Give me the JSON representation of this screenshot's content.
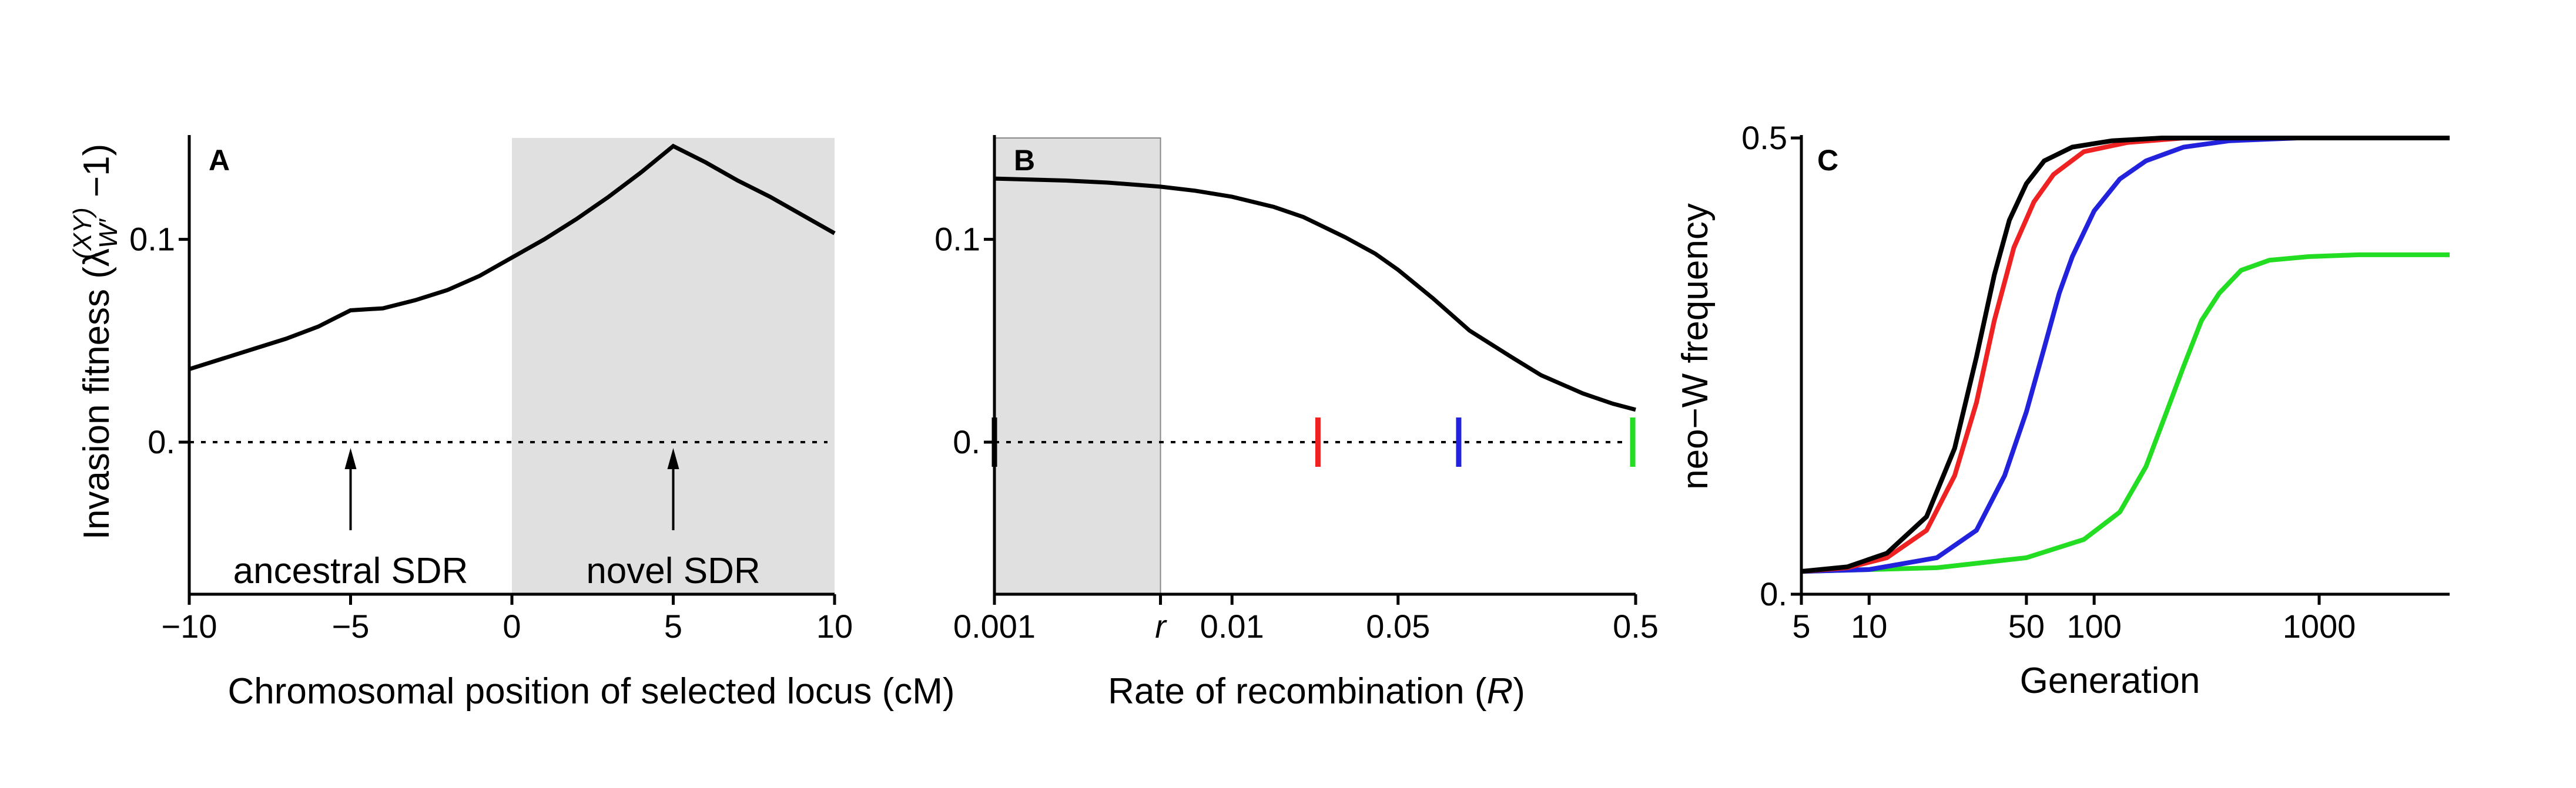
{
  "chart_data": [
    {
      "panel": "A",
      "type": "line",
      "title": "",
      "xlabel": "Chromosomal position of selected locus (cM)",
      "ylabel": "Invasion fitness (λW′(XY) − 1)",
      "ylabel_parts": {
        "pre": "Invasion fitness (λ",
        "sub": "W′",
        "sup": "(XY)",
        "post": " −1)"
      },
      "xlim": [
        -10,
        10
      ],
      "ylim": [
        -0.075,
        0.15
      ],
      "xticks": [
        -10,
        -5,
        0,
        5,
        10
      ],
      "xtick_labels": [
        "−10",
        "−5",
        "0",
        "5",
        "10"
      ],
      "yticks": [
        0,
        0.1
      ],
      "ytick_labels": [
        "0.",
        "0.1"
      ],
      "shaded_region": [
        0,
        10
      ],
      "reference_line": 0,
      "series": [
        {
          "color": "#000000",
          "x": [
            -10,
            -9,
            -8,
            -7,
            -6,
            -5.5,
            -5,
            -4.5,
            -4,
            -3,
            -2,
            -1,
            0,
            1,
            2,
            3,
            4,
            5,
            6,
            7,
            8,
            9,
            10
          ],
          "y": [
            0.036,
            0.041,
            0.046,
            0.051,
            0.057,
            0.061,
            0.065,
            0.0655,
            0.066,
            0.07,
            0.075,
            0.082,
            0.091,
            0.1,
            0.11,
            0.121,
            0.133,
            0.146,
            0.138,
            0.129,
            0.121,
            0.112,
            0.103
          ]
        }
      ],
      "annotations": [
        {
          "text": "ancestral SDR",
          "x": -5
        },
        {
          "text": "novel SDR",
          "x": 5
        }
      ]
    },
    {
      "panel": "B",
      "type": "line",
      "title": "",
      "xlabel_parts": {
        "pre": "Rate of recombination (",
        "var": "R",
        "post": ")"
      },
      "xscale": "log",
      "xlim": [
        0.001,
        0.5
      ],
      "ylim": [
        -0.075,
        0.15
      ],
      "xticks": [
        0.001,
        0.005,
        0.01,
        0.05,
        0.5
      ],
      "xtick_labels": [
        "0.001",
        "r",
        "0.01",
        "0.05",
        "0.5"
      ],
      "yticks": [
        0,
        0.1
      ],
      "ytick_labels": [
        "0.",
        "0.1"
      ],
      "shaded_region": [
        0.001,
        0.005
      ],
      "reference_line": 0,
      "series": [
        {
          "color": "#000000",
          "x": [
            0.001,
            0.002,
            0.003,
            0.005,
            0.007,
            0.01,
            0.015,
            0.02,
            0.03,
            0.04,
            0.05,
            0.07,
            0.1,
            0.15,
            0.2,
            0.3,
            0.4,
            0.5
          ],
          "y": [
            0.13,
            0.129,
            0.128,
            0.126,
            0.124,
            0.121,
            0.116,
            0.111,
            0.101,
            0.093,
            0.085,
            0.071,
            0.055,
            0.042,
            0.033,
            0.024,
            0.019,
            0.016
          ]
        }
      ],
      "markers": [
        {
          "x": 0.001,
          "color": "#000000"
        },
        {
          "x": 0.023,
          "color": "#ee2222"
        },
        {
          "x": 0.09,
          "color": "#2222dd"
        },
        {
          "x": 0.5,
          "color": "#22dd22"
        }
      ]
    },
    {
      "panel": "C",
      "type": "line",
      "title": "",
      "xlabel": "Generation",
      "ylabel": "neo−W frequency",
      "xscale": "log",
      "xlim": [
        5,
        3800
      ],
      "ylim": [
        0,
        0.5
      ],
      "xticks": [
        5,
        10,
        50,
        100,
        1000
      ],
      "xtick_labels": [
        "5",
        "10",
        "50",
        "100",
        "1000"
      ],
      "yticks": [
        0,
        0.5
      ],
      "ytick_labels": [
        "0.",
        "0.5"
      ],
      "series": [
        {
          "color": "#000000",
          "x": [
            5,
            8,
            12,
            18,
            24,
            30,
            36,
            42,
            50,
            60,
            80,
            120,
            200,
            400,
            1000,
            3800
          ],
          "y": [
            0.025,
            0.03,
            0.045,
            0.085,
            0.16,
            0.26,
            0.35,
            0.41,
            0.45,
            0.475,
            0.49,
            0.497,
            0.5,
            0.5,
            0.5,
            0.5
          ]
        },
        {
          "color": "#ee2222",
          "x": [
            5,
            8,
            12,
            18,
            24,
            30,
            36,
            44,
            54,
            66,
            90,
            140,
            250,
            500,
            1000,
            3800
          ],
          "y": [
            0.025,
            0.029,
            0.04,
            0.07,
            0.13,
            0.21,
            0.3,
            0.38,
            0.43,
            0.46,
            0.485,
            0.495,
            0.5,
            0.5,
            0.5,
            0.5
          ]
        },
        {
          "color": "#2222dd",
          "x": [
            5,
            10,
            20,
            30,
            40,
            50,
            60,
            70,
            80,
            100,
            130,
            170,
            250,
            400,
            800,
            3800
          ],
          "y": [
            0.025,
            0.027,
            0.04,
            0.07,
            0.13,
            0.2,
            0.27,
            0.33,
            0.37,
            0.42,
            0.455,
            0.475,
            0.49,
            0.497,
            0.5,
            0.5
          ]
        },
        {
          "color": "#22dd22",
          "x": [
            5,
            20,
            50,
            90,
            130,
            170,
            210,
            250,
            300,
            360,
            450,
            600,
            900,
            1500,
            3800
          ],
          "y": [
            0.025,
            0.029,
            0.04,
            0.06,
            0.09,
            0.14,
            0.2,
            0.25,
            0.3,
            0.33,
            0.355,
            0.366,
            0.37,
            0.372,
            0.372
          ]
        }
      ]
    }
  ]
}
